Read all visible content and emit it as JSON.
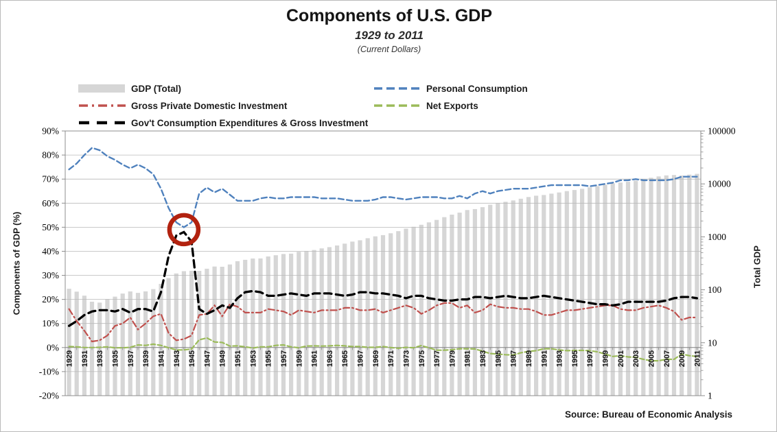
{
  "header": {
    "title": "Components of U.S. GDP",
    "subtitle": "1929 to 2011",
    "subtitle2": "(Current Dollars)"
  },
  "source": "Source: Bureau of Economic Analysis",
  "legend": {
    "items": [
      {
        "label": "GDP (Total)",
        "swatch": "bar",
        "color": "#d6d6d6"
      },
      {
        "label": "Personal Consumption",
        "swatch": "dash",
        "color": "#4f81bd"
      },
      {
        "label": "Gross Private Domestic Investment",
        "swatch": "dashdot",
        "color": "#c0504d"
      },
      {
        "label": "Net Exports",
        "swatch": "dash",
        "color": "#9bbb59"
      },
      {
        "label": "Gov't Consumption Expenditures & Gross Investment",
        "swatch": "longdash",
        "color": "#000000"
      }
    ]
  },
  "chart_data": {
    "type": "bar+line combo",
    "title": "Components of U.S. GDP",
    "subtitle": "1929 to 2011 (Current Dollars)",
    "left_axis": {
      "title": "Components of GDP (%)",
      "min": -20,
      "max": 90,
      "tick_step": 10,
      "tick_labels": [
        "90%",
        "80%",
        "70%",
        "60%",
        "50%",
        "40%",
        "30%",
        "20%",
        "10%",
        "0%",
        "-10%",
        "-20%"
      ]
    },
    "right_axis": {
      "title": "Total GDP",
      "scale": "log10",
      "min": 1,
      "max": 100000,
      "tick_labels": [
        "100000",
        "10000",
        "1000",
        "100",
        "10",
        "1"
      ]
    },
    "x_tick_label_step": 2,
    "grid": true,
    "years": [
      1929,
      1930,
      1931,
      1932,
      1933,
      1934,
      1935,
      1936,
      1937,
      1938,
      1939,
      1940,
      1941,
      1942,
      1943,
      1944,
      1945,
      1946,
      1947,
      1948,
      1949,
      1950,
      1951,
      1952,
      1953,
      1954,
      1955,
      1956,
      1957,
      1958,
      1959,
      1960,
      1961,
      1962,
      1963,
      1964,
      1965,
      1966,
      1967,
      1968,
      1969,
      1970,
      1971,
      1972,
      1973,
      1974,
      1975,
      1976,
      1977,
      1978,
      1979,
      1980,
      1981,
      1982,
      1983,
      1984,
      1985,
      1986,
      1987,
      1988,
      1989,
      1990,
      1991,
      1992,
      1993,
      1994,
      1995,
      1996,
      1997,
      1998,
      1999,
      2000,
      2001,
      2002,
      2003,
      2004,
      2005,
      2006,
      2007,
      2008,
      2009,
      2010,
      2011
    ],
    "bar_series": {
      "name": "GDP (Total)",
      "axis": "right",
      "color": "#d6d6d6",
      "units": "billions of current dollars",
      "values": [
        104.6,
        92.2,
        77.4,
        59.5,
        57.2,
        66.8,
        74.3,
        84.9,
        93.0,
        87.4,
        93.5,
        102.9,
        129.4,
        166.0,
        203.1,
        224.6,
        228.2,
        227.8,
        249.9,
        274.8,
        272.8,
        300.2,
        347.3,
        367.7,
        389.7,
        391.1,
        426.2,
        450.1,
        474.9,
        482.0,
        522.5,
        543.3,
        563.3,
        605.1,
        638.6,
        685.8,
        743.7,
        815.0,
        861.7,
        942.5,
        1019.9,
        1075.9,
        1167.8,
        1282.4,
        1428.5,
        1548.8,
        1688.9,
        1877.6,
        2086.0,
        2356.6,
        2632.1,
        2862.5,
        3211.0,
        3345.0,
        3638.1,
        4040.7,
        4346.7,
        4590.2,
        4870.2,
        5252.6,
        5657.7,
        5979.6,
        6174.0,
        6539.3,
        6878.7,
        7308.8,
        7664.1,
        8100.2,
        8608.5,
        9089.2,
        9660.6,
        10284.8,
        10621.8,
        10977.5,
        11510.7,
        12274.9,
        13093.7,
        13855.9,
        14477.6,
        14718.6,
        14418.7,
        14964.4,
        15517.9
      ]
    },
    "series": [
      {
        "name": "Personal Consumption",
        "axis": "left",
        "color": "#4f81bd",
        "dash": "8 4.5",
        "width": 2.4,
        "values": [
          74.0,
          76.5,
          80.0,
          83.0,
          82.0,
          79.5,
          78.0,
          76.0,
          74.5,
          76.0,
          74.5,
          72.0,
          66.0,
          58.0,
          52.0,
          50.0,
          52.0,
          64.0,
          66.5,
          64.5,
          66.0,
          63.5,
          61.0,
          61.0,
          61.0,
          62.0,
          62.5,
          62.0,
          62.0,
          62.5,
          62.5,
          62.5,
          62.5,
          62.0,
          62.0,
          62.0,
          61.5,
          61.0,
          61.0,
          61.0,
          61.5,
          62.5,
          62.5,
          62.0,
          61.5,
          62.0,
          62.5,
          62.5,
          62.5,
          62.0,
          62.0,
          63.0,
          62.0,
          64.0,
          65.0,
          64.0,
          65.0,
          65.5,
          66.0,
          66.0,
          66.0,
          66.5,
          67.0,
          67.5,
          67.5,
          67.5,
          67.5,
          67.5,
          67.0,
          67.5,
          68.0,
          68.5,
          69.5,
          69.5,
          70.0,
          69.5,
          69.5,
          69.5,
          69.5,
          70.0,
          71.0,
          71.0,
          71.0
        ]
      },
      {
        "name": "Gross Private Domestic Investment",
        "axis": "left",
        "color": "#c0504d",
        "dash": "9 4 2 4",
        "width": 2.2,
        "values": [
          16.0,
          11.0,
          7.0,
          2.5,
          3.0,
          5.0,
          9.0,
          10.0,
          12.5,
          7.5,
          10.0,
          13.0,
          14.0,
          6.0,
          3.0,
          3.5,
          5.0,
          13.5,
          14.0,
          17.5,
          13.0,
          18.0,
          17.0,
          14.5,
          14.5,
          14.5,
          16.0,
          15.5,
          15.0,
          13.5,
          15.5,
          15.0,
          14.5,
          15.5,
          15.5,
          15.5,
          16.5,
          16.5,
          15.5,
          15.5,
          16.0,
          14.5,
          15.5,
          16.5,
          17.5,
          16.5,
          14.0,
          15.5,
          17.5,
          18.5,
          18.5,
          16.5,
          17.5,
          14.5,
          15.5,
          18.0,
          17.0,
          16.5,
          16.5,
          16.0,
          16.0,
          15.0,
          13.5,
          13.5,
          14.5,
          15.5,
          15.5,
          16.0,
          16.5,
          17.0,
          17.5,
          17.5,
          16.0,
          15.5,
          15.5,
          16.5,
          17.0,
          17.5,
          16.5,
          15.0,
          11.5,
          12.5,
          12.5
        ]
      },
      {
        "name": "Net Exports",
        "axis": "left",
        "color": "#9bbb59",
        "dash": "6.5 3.5",
        "width": 2.2,
        "values": [
          0.4,
          0.3,
          0.0,
          0.0,
          0.1,
          0.3,
          -0.1,
          -0.1,
          0.1,
          1.1,
          0.9,
          1.4,
          0.9,
          -0.1,
          -1.0,
          -1.0,
          -0.6,
          3.2,
          4.0,
          2.3,
          2.1,
          0.6,
          0.7,
          0.3,
          -0.2,
          0.3,
          0.3,
          0.9,
          1.1,
          0.3,
          -0.1,
          0.6,
          0.7,
          0.6,
          0.7,
          0.9,
          0.7,
          0.4,
          0.4,
          0.1,
          0.1,
          0.4,
          0.0,
          -0.3,
          0.1,
          -0.1,
          0.8,
          -0.1,
          -1.1,
          -1.1,
          -0.9,
          -0.5,
          -0.5,
          -0.6,
          -1.5,
          -2.5,
          -2.7,
          -3.0,
          -3.1,
          -2.2,
          -1.6,
          -1.3,
          -0.5,
          -0.5,
          -1.0,
          -1.3,
          -1.2,
          -1.2,
          -1.3,
          -1.8,
          -2.7,
          -3.7,
          -3.4,
          -3.9,
          -4.1,
          -4.9,
          -5.5,
          -5.5,
          -4.9,
          -4.9,
          -2.7,
          -3.4,
          -3.7
        ]
      },
      {
        "name": "Gov't Consumption Expenditures & Gross Investment",
        "axis": "left",
        "color": "#000000",
        "dash": "10.5 6.5",
        "width": 3.3,
        "values": [
          9.0,
          11.0,
          13.5,
          15.0,
          15.5,
          15.5,
          15.0,
          16.0,
          14.5,
          16.0,
          16.0,
          15.0,
          23.0,
          38.0,
          46.5,
          48.0,
          44.0,
          16.0,
          14.0,
          15.5,
          17.5,
          16.5,
          20.5,
          23.0,
          23.5,
          23.0,
          21.5,
          21.5,
          22.0,
          22.5,
          22.0,
          21.5,
          22.5,
          22.5,
          22.5,
          22.0,
          21.5,
          22.0,
          23.0,
          23.0,
          22.5,
          22.5,
          22.0,
          21.5,
          20.5,
          21.5,
          21.5,
          20.5,
          20.0,
          19.5,
          19.5,
          20.0,
          20.0,
          21.0,
          21.0,
          20.5,
          21.0,
          21.5,
          21.0,
          20.5,
          20.5,
          21.0,
          21.5,
          21.0,
          20.5,
          20.0,
          19.5,
          19.0,
          18.5,
          18.0,
          18.0,
          17.5,
          18.0,
          19.0,
          19.0,
          19.0,
          19.0,
          19.0,
          19.5,
          20.5,
          21.0,
          21.0,
          20.5
        ]
      }
    ],
    "annotation": {
      "shape": "circle",
      "year": 1944,
      "percent": 49,
      "color": "#b2220f"
    }
  }
}
